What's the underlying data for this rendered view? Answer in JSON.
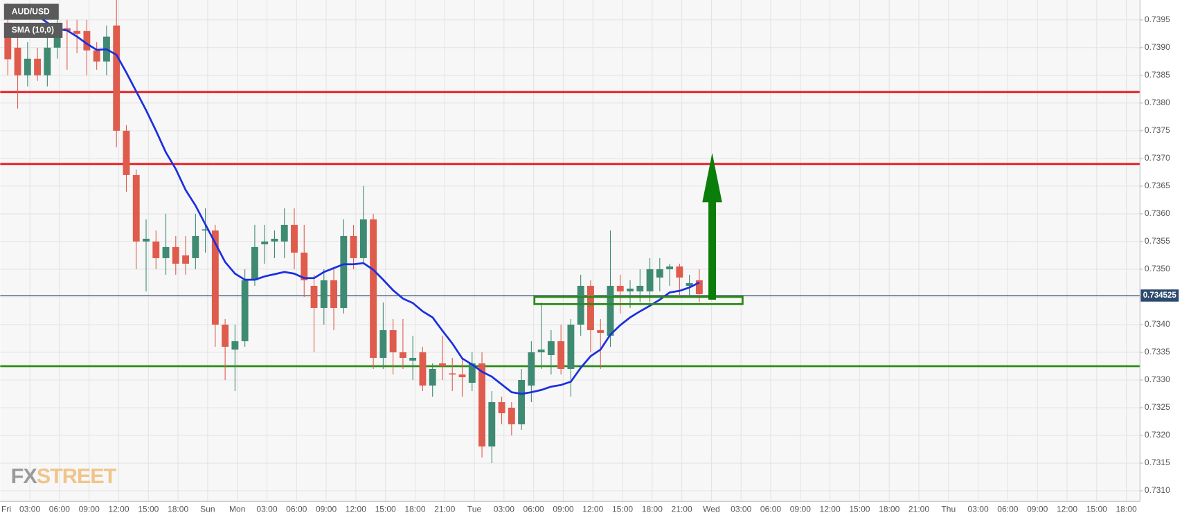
{
  "chart_data": {
    "type": "candlestick",
    "legend": [
      "AUD/USD",
      "SMA (10,0)"
    ],
    "watermark": [
      "FX",
      "STREET"
    ],
    "xticklabels": [
      "Fri",
      "03:00",
      "06:00",
      "09:00",
      "12:00",
      "15:00",
      "18:00",
      "Sun",
      "Mon",
      "03:00",
      "06:00",
      "09:00",
      "12:00",
      "15:00",
      "18:00",
      "21:00",
      "Tue",
      "03:00",
      "06:00",
      "09:00",
      "12:00",
      "15:00",
      "18:00",
      "21:00",
      "Wed",
      "03:00",
      "06:00",
      "09:00",
      "12:00",
      "15:00",
      "18:00",
      "21:00",
      "Thu",
      "03:00",
      "06:00",
      "09:00",
      "12:00",
      "15:00",
      "18:00"
    ],
    "open": [
      0.73945,
      0.739,
      0.7385,
      0.7388,
      0.7385,
      0.739,
      0.73935,
      0.7393,
      0.7393,
      0.73895,
      0.73875,
      0.7394,
      0.7375,
      0.7367,
      0.7355,
      0.7355,
      0.7352,
      0.7354,
      0.73525,
      0.7352,
      0.7357,
      0.7357,
      0.734,
      0.73355,
      0.7337,
      0.7348,
      0.73545,
      0.7355,
      0.7355,
      0.7358,
      0.7353,
      0.7347,
      0.7343,
      0.7348,
      0.7343,
      0.7356,
      0.7352,
      0.7359,
      0.7334,
      0.7339,
      0.7335,
      0.73335,
      0.7335,
      0.7329,
      0.7333,
      0.73312,
      0.7331,
      0.73295,
      0.7333,
      0.7318,
      0.7326,
      0.7325,
      0.7322,
      0.7329,
      0.7335,
      0.73345,
      0.7337,
      0.7332,
      0.734,
      0.7347,
      0.7339,
      0.7338,
      0.7347,
      0.7346,
      0.7346,
      0.7346,
      0.73485,
      0.735,
      0.73505,
      0.7347,
      0.7348
    ],
    "high": [
      0.7398,
      0.7392,
      0.7391,
      0.739,
      0.7393,
      0.7396,
      0.7395,
      0.7395,
      0.7395,
      0.7391,
      0.7394,
      0.7399,
      0.7376,
      0.7368,
      0.7359,
      0.7357,
      0.736,
      0.7356,
      0.7356,
      0.736,
      0.7361,
      0.7358,
      0.7341,
      0.734,
      0.735,
      0.7358,
      0.7358,
      0.7357,
      0.7361,
      0.7361,
      0.7358,
      0.7349,
      0.735,
      0.735,
      0.7359,
      0.7358,
      0.7365,
      0.736,
      0.7344,
      0.7341,
      0.7341,
      0.7338,
      0.7336,
      0.7333,
      0.7338,
      0.7334,
      0.7334,
      0.7335,
      0.7335,
      0.7328,
      0.7327,
      0.7326,
      0.7332,
      0.7337,
      0.7344,
      0.7339,
      0.734,
      0.7341,
      0.7349,
      0.7348,
      0.7341,
      0.7357,
      0.7349,
      0.7348,
      0.735,
      0.7352,
      0.7352,
      0.7351,
      0.7351,
      0.7349,
      0.735
    ],
    "low": [
      0.7385,
      0.7379,
      0.7383,
      0.7384,
      0.7383,
      0.7388,
      0.7386,
      0.7389,
      0.7385,
      0.7386,
      0.7385,
      0.7372,
      0.7364,
      0.735,
      0.7346,
      0.735,
      0.7349,
      0.7349,
      0.7349,
      0.735,
      0.7353,
      0.7336,
      0.733,
      0.7328,
      0.7336,
      0.7347,
      0.7351,
      0.7352,
      0.7352,
      0.735,
      0.7345,
      0.7335,
      0.734,
      0.7339,
      0.7342,
      0.735,
      0.7351,
      0.7332,
      0.7332,
      0.7331,
      0.7332,
      0.733,
      0.7328,
      0.7327,
      0.733,
      0.7328,
      0.7327,
      0.7328,
      0.7316,
      0.7315,
      0.7322,
      0.732,
      0.7321,
      0.7326,
      0.7332,
      0.7331,
      0.7331,
      0.7327,
      0.7338,
      0.7335,
      0.7332,
      0.7336,
      0.7342,
      0.7343,
      0.7344,
      0.7344,
      0.7346,
      0.7347,
      0.7345,
      0.7345,
      0.7344
    ],
    "close": [
      0.73879,
      0.7385,
      0.7388,
      0.7385,
      0.739,
      0.7393,
      0.7393,
      0.73925,
      0.73895,
      0.73875,
      0.7392,
      0.7375,
      0.7367,
      0.7355,
      0.73555,
      0.7352,
      0.7354,
      0.7351,
      0.7351,
      0.7356,
      0.73572,
      0.734,
      0.7336,
      0.7337,
      0.7348,
      0.7354,
      0.7355,
      0.73555,
      0.7358,
      0.7353,
      0.7348,
      0.7343,
      0.7348,
      0.7343,
      0.7356,
      0.7352,
      0.7359,
      0.7334,
      0.7339,
      0.7335,
      0.7334,
      0.7334,
      0.7329,
      0.7332,
      0.73325,
      0.7331,
      0.73305,
      0.7333,
      0.7318,
      0.7326,
      0.7324,
      0.7322,
      0.733,
      0.7335,
      0.73355,
      0.7337,
      0.7332,
      0.734,
      0.7347,
      0.7339,
      0.73385,
      0.7347,
      0.7346,
      0.73465,
      0.7347,
      0.735,
      0.735,
      0.73505,
      0.73485,
      0.73475,
      0.73455
    ],
    "up_color": "#3f8a72",
    "down_color": "#df5b4c",
    "sma": {
      "color": "#1b2fe0",
      "values": [
        null,
        null,
        0.73972,
        0.73958,
        0.73945,
        0.73934,
        0.73931,
        0.7392,
        0.73907,
        0.73896,
        0.73897,
        0.73887,
        0.73855,
        0.73821,
        0.73787,
        0.7375,
        0.73711,
        0.73681,
        0.73643,
        0.73615,
        0.73581,
        0.73547,
        0.73513,
        0.73492,
        0.73481,
        0.73481,
        0.73487,
        0.73491,
        0.73495,
        0.73492,
        0.73484,
        0.73484,
        0.73495,
        0.73502,
        0.73509,
        0.73509,
        0.73511,
        0.73499,
        0.73481,
        0.73462,
        0.73447,
        0.73439,
        0.73424,
        0.73413,
        0.73389,
        0.73366,
        0.73339,
        0.73328,
        0.73315,
        0.73306,
        0.73292,
        0.73278,
        0.73275,
        0.73278,
        0.73282,
        0.73288,
        0.73291,
        0.73297,
        0.73322,
        0.73343,
        0.73355,
        0.73382,
        0.73399,
        0.73413,
        0.73424,
        0.73434,
        0.73445,
        0.73458,
        0.73461,
        0.73467,
        0.73476
      ]
    },
    "levels": [
      {
        "value": 0.7382,
        "color": "#e8141a"
      },
      {
        "value": 0.7369,
        "color": "#e8141a"
      },
      {
        "value": 0.73325,
        "color": "#2b8a16"
      }
    ],
    "last_price": 0.734525,
    "last_price_color": "#2d4a6e",
    "zone": {
      "top": 0.7345,
      "bottom": 0.73437,
      "color": "#2b8a16"
    },
    "arrow": {
      "from": 0.73445,
      "to": 0.7371,
      "color": "#0b7d0b"
    },
    "ylim": [
      0.73081,
      0.73986
    ],
    "yticks": [
      0.7395,
      {
        "value": 0.739,
        "label": "0.7390"
      },
      0.7385,
      {
        "value": 0.738,
        "label": "0.7380"
      },
      0.7375,
      {
        "value": 0.737,
        "label": "0.7370"
      },
      0.7365,
      {
        "value": 0.736,
        "label": "0.7360"
      },
      0.7355,
      {
        "value": 0.735,
        "label": "0.7350"
      },
      0.7345,
      {
        "value": 0.734,
        "label": "0.7340"
      },
      0.7335,
      {
        "value": 0.733,
        "label": "0.7330"
      },
      0.7325,
      {
        "value": 0.732,
        "label": "0.7320"
      },
      0.7315,
      {
        "value": 0.731,
        "label": "0.7310"
      }
    ],
    "grid": true
  }
}
